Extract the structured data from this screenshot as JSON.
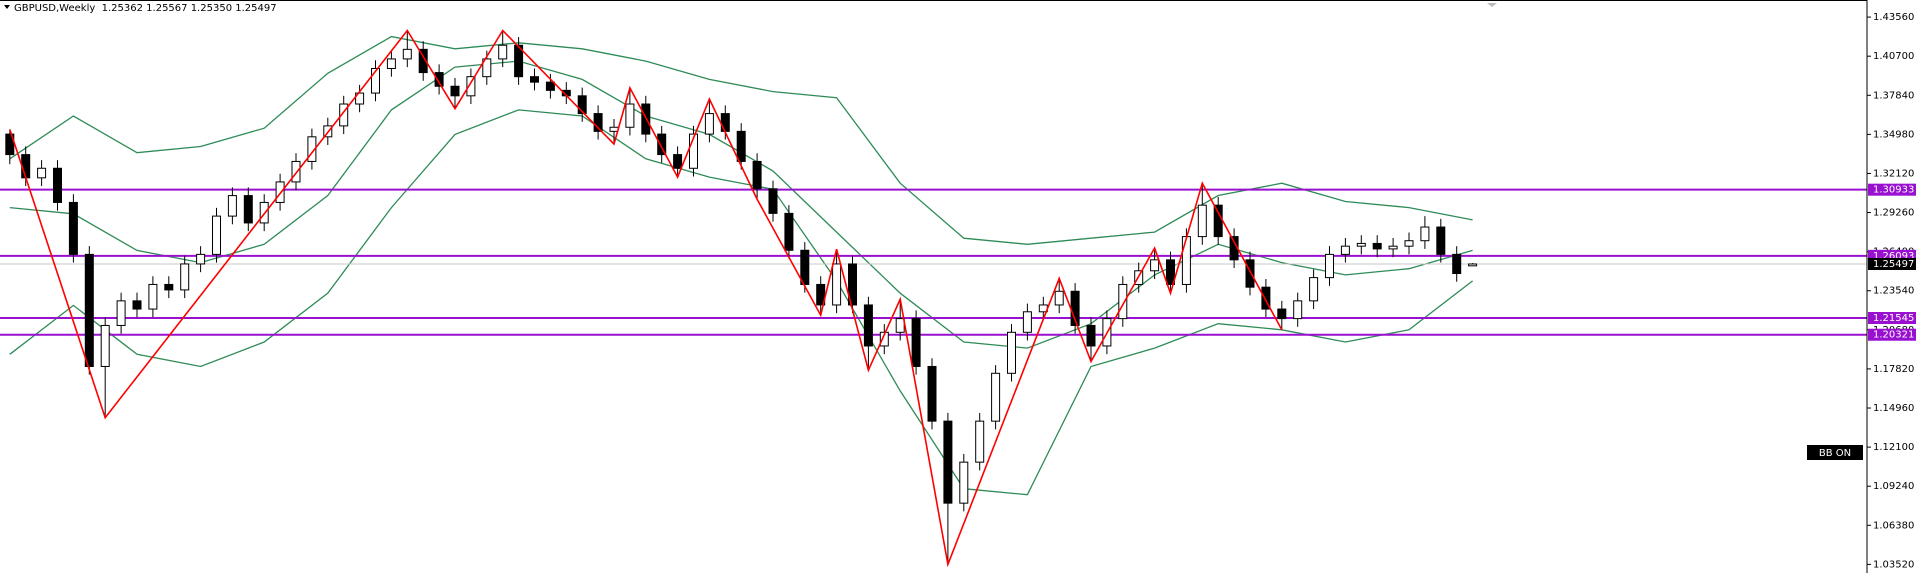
{
  "chart_data": {
    "type": "candlestick",
    "title": "GBPUSD,Weekly  1.25362 1.25567 1.25350 1.25497",
    "ylim": [
      1.0289,
      1.4481
    ],
    "yticks": [
      {
        "value": 1.4356,
        "label": "1.43560"
      },
      {
        "value": 1.407,
        "label": "1.40700"
      },
      {
        "value": 1.3784,
        "label": "1.37840"
      },
      {
        "value": 1.3498,
        "label": "1.34980"
      },
      {
        "value": 1.3212,
        "label": "1.32120"
      },
      {
        "value": 1.2926,
        "label": "1.29260"
      },
      {
        "value": 1.264,
        "label": "1.26400"
      },
      {
        "value": 1.2354,
        "label": "1.23540"
      },
      {
        "value": 1.2068,
        "label": "1.20680"
      },
      {
        "value": 1.1782,
        "label": "1.17820"
      },
      {
        "value": 1.1496,
        "label": "1.14960"
      },
      {
        "value": 1.121,
        "label": "1.12100"
      },
      {
        "value": 1.0924,
        "label": "1.09240"
      },
      {
        "value": 1.0638,
        "label": "1.06380"
      },
      {
        "value": 1.0352,
        "label": "1.03520"
      }
    ],
    "candles": [
      [
        1.35,
        1.3534,
        1.328,
        1.335
      ],
      [
        1.335,
        1.341,
        1.312,
        1.318
      ],
      [
        1.318,
        1.331,
        1.312,
        1.325
      ],
      [
        1.325,
        1.331,
        1.294,
        1.3
      ],
      [
        1.3,
        1.306,
        1.256,
        1.262
      ],
      [
        1.262,
        1.268,
        1.174,
        1.18
      ],
      [
        1.18,
        1.216,
        1.1425,
        1.21
      ],
      [
        1.21,
        1.234,
        1.204,
        1.228
      ],
      [
        1.228,
        1.234,
        1.216,
        1.222
      ],
      [
        1.222,
        1.246,
        1.216,
        1.24
      ],
      [
        1.24,
        1.246,
        1.23,
        1.236
      ],
      [
        1.236,
        1.261,
        1.23,
        1.255
      ],
      [
        1.255,
        1.268,
        1.249,
        1.262
      ],
      [
        1.262,
        1.296,
        1.256,
        1.29
      ],
      [
        1.29,
        1.311,
        1.284,
        1.305
      ],
      [
        1.305,
        1.311,
        1.279,
        1.285
      ],
      [
        1.285,
        1.306,
        1.279,
        1.3
      ],
      [
        1.3,
        1.321,
        1.294,
        1.315
      ],
      [
        1.315,
        1.336,
        1.309,
        1.33
      ],
      [
        1.33,
        1.354,
        1.324,
        1.348
      ],
      [
        1.348,
        1.362,
        1.342,
        1.356
      ],
      [
        1.356,
        1.378,
        1.35,
        1.372
      ],
      [
        1.372,
        1.386,
        1.366,
        1.38
      ],
      [
        1.38,
        1.404,
        1.374,
        1.398
      ],
      [
        1.398,
        1.411,
        1.392,
        1.405
      ],
      [
        1.405,
        1.4258,
        1.399,
        1.412
      ],
      [
        1.412,
        1.418,
        1.389,
        1.395
      ],
      [
        1.395,
        1.401,
        1.379,
        1.385
      ],
      [
        1.385,
        1.391,
        1.3686,
        1.378
      ],
      [
        1.378,
        1.398,
        1.372,
        1.392
      ],
      [
        1.392,
        1.411,
        1.386,
        1.405
      ],
      [
        1.405,
        1.4258,
        1.399,
        1.415
      ],
      [
        1.415,
        1.421,
        1.386,
        1.392
      ],
      [
        1.392,
        1.398,
        1.382,
        1.388
      ],
      [
        1.388,
        1.394,
        1.376,
        1.382
      ],
      [
        1.382,
        1.388,
        1.372,
        1.378
      ],
      [
        1.378,
        1.384,
        1.359,
        1.365
      ],
      [
        1.365,
        1.371,
        1.346,
        1.352
      ],
      [
        1.352,
        1.361,
        1.3427,
        1.355
      ],
      [
        1.355,
        1.3838,
        1.349,
        1.372
      ],
      [
        1.372,
        1.378,
        1.344,
        1.35
      ],
      [
        1.35,
        1.356,
        1.329,
        1.335
      ],
      [
        1.335,
        1.341,
        1.3185,
        1.325
      ],
      [
        1.325,
        1.356,
        1.319,
        1.35
      ],
      [
        1.35,
        1.3757,
        1.344,
        1.365
      ],
      [
        1.365,
        1.371,
        1.346,
        1.352
      ],
      [
        1.352,
        1.358,
        1.324,
        1.33
      ],
      [
        1.33,
        1.336,
        1.3024,
        1.31
      ],
      [
        1.31,
        1.316,
        1.286,
        1.292
      ],
      [
        1.292,
        1.298,
        1.259,
        1.265
      ],
      [
        1.265,
        1.271,
        1.234,
        1.24
      ],
      [
        1.24,
        1.246,
        1.2175,
        1.225
      ],
      [
        1.225,
        1.2658,
        1.219,
        1.255
      ],
      [
        1.255,
        1.261,
        1.219,
        1.225
      ],
      [
        1.225,
        1.231,
        1.1773,
        1.195
      ],
      [
        1.195,
        1.211,
        1.189,
        1.205
      ],
      [
        1.205,
        1.2292,
        1.199,
        1.215
      ],
      [
        1.215,
        1.221,
        1.174,
        1.18
      ],
      [
        1.18,
        1.186,
        1.134,
        1.14
      ],
      [
        1.14,
        1.146,
        1.0352,
        1.08
      ],
      [
        1.08,
        1.116,
        1.074,
        1.11
      ],
      [
        1.11,
        1.146,
        1.104,
        1.14
      ],
      [
        1.14,
        1.181,
        1.134,
        1.175
      ],
      [
        1.175,
        1.211,
        1.169,
        1.205
      ],
      [
        1.205,
        1.226,
        1.199,
        1.22
      ],
      [
        1.22,
        1.231,
        1.214,
        1.225
      ],
      [
        1.225,
        1.2444,
        1.219,
        1.235
      ],
      [
        1.235,
        1.241,
        1.204,
        1.21
      ],
      [
        1.21,
        1.216,
        1.1836,
        1.195
      ],
      [
        1.195,
        1.221,
        1.189,
        1.215
      ],
      [
        1.215,
        1.246,
        1.209,
        1.24
      ],
      [
        1.24,
        1.256,
        1.234,
        1.25
      ],
      [
        1.25,
        1.2667,
        1.244,
        1.258
      ],
      [
        1.258,
        1.264,
        1.2336,
        1.24
      ],
      [
        1.24,
        1.281,
        1.234,
        1.275
      ],
      [
        1.275,
        1.3141,
        1.269,
        1.298
      ],
      [
        1.298,
        1.304,
        1.269,
        1.275
      ],
      [
        1.275,
        1.281,
        1.252,
        1.258
      ],
      [
        1.258,
        1.264,
        1.232,
        1.238
      ],
      [
        1.238,
        1.244,
        1.216,
        1.222
      ],
      [
        1.222,
        1.228,
        1.2068,
        1.215
      ],
      [
        1.215,
        1.234,
        1.209,
        1.228
      ],
      [
        1.228,
        1.251,
        1.222,
        1.245
      ],
      [
        1.245,
        1.268,
        1.239,
        1.262
      ],
      [
        1.262,
        1.274,
        1.256,
        1.268
      ],
      [
        1.268,
        1.276,
        1.262,
        1.27
      ],
      [
        1.27,
        1.276,
        1.26,
        1.266
      ],
      [
        1.266,
        1.274,
        1.26,
        1.268
      ],
      [
        1.268,
        1.278,
        1.262,
        1.272
      ],
      [
        1.272,
        1.29,
        1.266,
        1.282
      ],
      [
        1.282,
        1.288,
        1.256,
        1.262
      ],
      [
        1.262,
        1.268,
        1.242,
        1.248
      ],
      [
        1.25362,
        1.25567,
        1.2535,
        1.25497
      ]
    ],
    "bands": {
      "color": "#2e8b57",
      "x": [
        0,
        4,
        8,
        12,
        16,
        20,
        24,
        28,
        32,
        36,
        40,
        44,
        48,
        52,
        56,
        60,
        64,
        68,
        72,
        76,
        80,
        84,
        88,
        92
      ],
      "series": [
        {
          "values": [
            1.3319,
            1.3632,
            1.3364,
            1.3409,
            1.3543,
            1.3945,
            1.4213,
            1.4124,
            1.4168,
            1.4124,
            1.4034,
            1.39,
            1.3811,
            1.3766,
            1.3141,
            1.2738,
            1.2694,
            1.2738,
            1.2783,
            1.3051,
            1.3141,
            1.3007,
            1.2962,
            1.2872
          ]
        },
        {
          "values": [
            1.2962,
            1.2917,
            1.2649,
            1.256,
            1.2694,
            1.3051,
            1.3677,
            1.399,
            1.4034,
            1.39,
            1.3632,
            1.3498,
            1.323,
            1.2783,
            1.2336,
            1.1979,
            1.1934,
            1.2113,
            1.247,
            1.2694,
            1.256,
            1.247,
            1.2515,
            1.2649
          ]
        },
        {
          "values": [
            1.1889,
            1.2247,
            1.1889,
            1.18,
            1.1979,
            1.2336,
            1.2962,
            1.3498,
            1.3677,
            1.3632,
            1.3319,
            1.3185,
            1.3096,
            1.2426,
            1.1621,
            1.0906,
            1.0862,
            1.18,
            1.1934,
            1.2113,
            1.2068,
            1.1979,
            1.2068,
            1.2426
          ]
        }
      ]
    },
    "zigzag": {
      "color": "#ff0000",
      "x": [
        0,
        6,
        25,
        28,
        31,
        38,
        39,
        42,
        44,
        47,
        51,
        52,
        54,
        56,
        59,
        66,
        68,
        72,
        73,
        75,
        80
      ],
      "values": [
        1.3534,
        1.1425,
        1.4258,
        1.3686,
        1.4258,
        1.3427,
        1.3838,
        1.3185,
        1.3757,
        1.3024,
        1.2175,
        1.2658,
        1.1773,
        1.2292,
        1.0352,
        1.2444,
        1.1836,
        1.2667,
        1.2336,
        1.3141,
        1.2068
      ]
    },
    "levels": [
      1.30933,
      1.26093,
      1.21545,
      1.20321
    ],
    "level_color": "#9a10d0",
    "last_price": 1.25497,
    "button": "BB ON"
  }
}
